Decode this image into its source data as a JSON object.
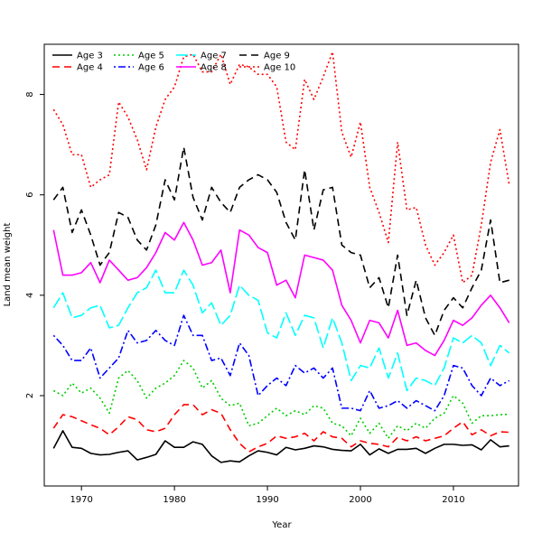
{
  "chart_data": {
    "type": "line",
    "title": "",
    "xlabel": "Year",
    "ylabel": "Land mean weight",
    "xlim": [
      1966,
      2017
    ],
    "ylim": [
      0.2,
      9.0
    ],
    "xticks": [
      1970,
      1980,
      1990,
      2000,
      2010
    ],
    "yticks": [
      2,
      4,
      6,
      8
    ],
    "x": [
      1967,
      1968,
      1969,
      1970,
      1971,
      1972,
      1973,
      1974,
      1975,
      1976,
      1977,
      1978,
      1979,
      1980,
      1981,
      1982,
      1983,
      1984,
      1985,
      1986,
      1987,
      1988,
      1989,
      1990,
      1991,
      1992,
      1993,
      1994,
      1995,
      1996,
      1997,
      1998,
      1999,
      2000,
      2001,
      2002,
      2003,
      2004,
      2005,
      2006,
      2007,
      2008,
      2009,
      2010,
      2011,
      2012,
      2013,
      2014,
      2015,
      2016
    ],
    "legend_position": "top-left",
    "series": [
      {
        "name": "Age 3",
        "color": "#000000",
        "dash": "solid",
        "values": [
          0.95,
          1.3,
          0.97,
          0.95,
          0.85,
          0.82,
          0.83,
          0.87,
          0.9,
          0.72,
          0.77,
          0.83,
          1.1,
          0.97,
          0.97,
          1.08,
          1.03,
          0.8,
          0.67,
          0.7,
          0.68,
          0.8,
          0.9,
          0.87,
          0.82,
          0.97,
          0.92,
          0.95,
          1.0,
          0.98,
          0.93,
          0.91,
          0.9,
          1.03,
          0.82,
          0.94,
          0.85,
          0.93,
          0.93,
          0.95,
          0.85,
          0.95,
          1.03,
          1.03,
          1.01,
          1.02,
          0.92,
          1.12,
          0.98,
          1.0
        ]
      },
      {
        "name": "Age 4",
        "color": "#ff0000",
        "dash": "dashed",
        "values": [
          1.35,
          1.62,
          1.58,
          1.5,
          1.42,
          1.35,
          1.22,
          1.38,
          1.58,
          1.52,
          1.32,
          1.28,
          1.35,
          1.62,
          1.82,
          1.82,
          1.62,
          1.72,
          1.65,
          1.32,
          1.05,
          0.88,
          0.98,
          1.05,
          1.2,
          1.15,
          1.18,
          1.25,
          1.1,
          1.28,
          1.18,
          1.15,
          0.98,
          1.1,
          1.05,
          1.03,
          0.98,
          1.17,
          1.1,
          1.18,
          1.1,
          1.15,
          1.2,
          1.35,
          1.48,
          1.22,
          1.32,
          1.2,
          1.28,
          1.27
        ]
      },
      {
        "name": "Age 5",
        "color": "#00cd00",
        "dash": "dotted",
        "values": [
          2.1,
          2.0,
          2.25,
          2.05,
          2.15,
          1.95,
          1.65,
          2.35,
          2.5,
          2.3,
          1.95,
          2.15,
          2.25,
          2.4,
          2.7,
          2.55,
          2.15,
          2.3,
          1.95,
          1.8,
          1.85,
          1.4,
          1.45,
          1.6,
          1.75,
          1.6,
          1.7,
          1.62,
          1.8,
          1.75,
          1.45,
          1.4,
          1.2,
          1.55,
          1.25,
          1.45,
          1.15,
          1.4,
          1.3,
          1.45,
          1.35,
          1.55,
          1.65,
          2.0,
          1.85,
          1.45,
          1.6,
          1.6,
          1.62,
          1.63
        ]
      },
      {
        "name": "Age 6",
        "color": "#0000ff",
        "dash": "dashdot",
        "values": [
          3.2,
          3.0,
          2.7,
          2.7,
          2.95,
          2.35,
          2.55,
          2.75,
          3.3,
          3.05,
          3.1,
          3.3,
          3.1,
          3.0,
          3.6,
          3.2,
          3.2,
          2.7,
          2.75,
          2.4,
          3.05,
          2.8,
          2.0,
          2.2,
          2.35,
          2.2,
          2.6,
          2.45,
          2.55,
          2.35,
          2.55,
          1.75,
          1.75,
          1.7,
          2.1,
          1.75,
          1.8,
          1.9,
          1.75,
          1.9,
          1.8,
          1.7,
          2.0,
          2.6,
          2.55,
          2.2,
          2.0,
          2.35,
          2.2,
          2.3
        ]
      },
      {
        "name": "Age 7",
        "color": "#00ffff",
        "dash": "longdash",
        "values": [
          3.75,
          4.05,
          3.55,
          3.6,
          3.75,
          3.8,
          3.35,
          3.4,
          3.75,
          4.05,
          4.15,
          4.5,
          4.05,
          4.05,
          4.5,
          4.2,
          3.65,
          3.85,
          3.4,
          3.6,
          4.2,
          4.0,
          3.9,
          3.25,
          3.15,
          3.65,
          3.2,
          3.6,
          3.55,
          2.95,
          3.55,
          3.05,
          2.3,
          2.6,
          2.55,
          2.95,
          2.35,
          2.85,
          2.1,
          2.35,
          2.3,
          2.2,
          2.55,
          3.15,
          3.05,
          3.2,
          3.05,
          2.6,
          3.0,
          2.85
        ]
      },
      {
        "name": "Age 8",
        "color": "#ff00ff",
        "dash": "solid",
        "values": [
          5.3,
          4.4,
          4.4,
          4.45,
          4.65,
          4.25,
          4.7,
          4.5,
          4.3,
          4.35,
          4.55,
          4.85,
          5.25,
          5.1,
          5.45,
          5.1,
          4.6,
          4.65,
          4.9,
          4.05,
          5.3,
          5.2,
          4.95,
          4.85,
          4.2,
          4.3,
          3.95,
          4.8,
          4.75,
          4.7,
          4.5,
          3.8,
          3.5,
          3.05,
          3.5,
          3.45,
          3.15,
          3.7,
          3.0,
          3.05,
          2.9,
          2.8,
          3.1,
          3.5,
          3.4,
          3.55,
          3.8,
          4.0,
          3.75,
          3.45
        ]
      },
      {
        "name": "Age 9",
        "color": "#000000",
        "dash": "dashed",
        "values": [
          5.9,
          6.15,
          5.25,
          5.7,
          5.2,
          4.6,
          4.85,
          5.65,
          5.55,
          5.1,
          4.9,
          5.4,
          6.3,
          5.9,
          6.95,
          5.95,
          5.5,
          6.15,
          5.85,
          5.65,
          6.15,
          6.3,
          6.4,
          6.3,
          6.05,
          5.45,
          5.1,
          6.5,
          5.3,
          6.1,
          6.15,
          5.0,
          4.85,
          4.8,
          4.15,
          4.35,
          3.75,
          4.8,
          3.6,
          4.3,
          3.55,
          3.2,
          3.7,
          3.95,
          3.75,
          4.15,
          4.5,
          5.5,
          4.25,
          4.3
        ]
      },
      {
        "name": "Age 10",
        "color": "#ff0000",
        "dash": "dotted",
        "values": [
          7.7,
          7.4,
          6.8,
          6.8,
          6.15,
          6.3,
          6.4,
          7.85,
          7.55,
          7.1,
          6.5,
          7.35,
          7.9,
          8.15,
          8.75,
          8.8,
          8.45,
          8.45,
          8.8,
          8.2,
          8.6,
          8.55,
          8.4,
          8.4,
          8.15,
          7.05,
          6.9,
          8.3,
          7.9,
          8.35,
          8.85,
          7.25,
          6.75,
          7.45,
          6.15,
          5.65,
          5.05,
          7.05,
          5.7,
          5.75,
          5.0,
          4.6,
          4.85,
          5.2,
          4.25,
          4.4,
          5.4,
          6.65,
          7.3,
          6.2
        ]
      }
    ]
  }
}
